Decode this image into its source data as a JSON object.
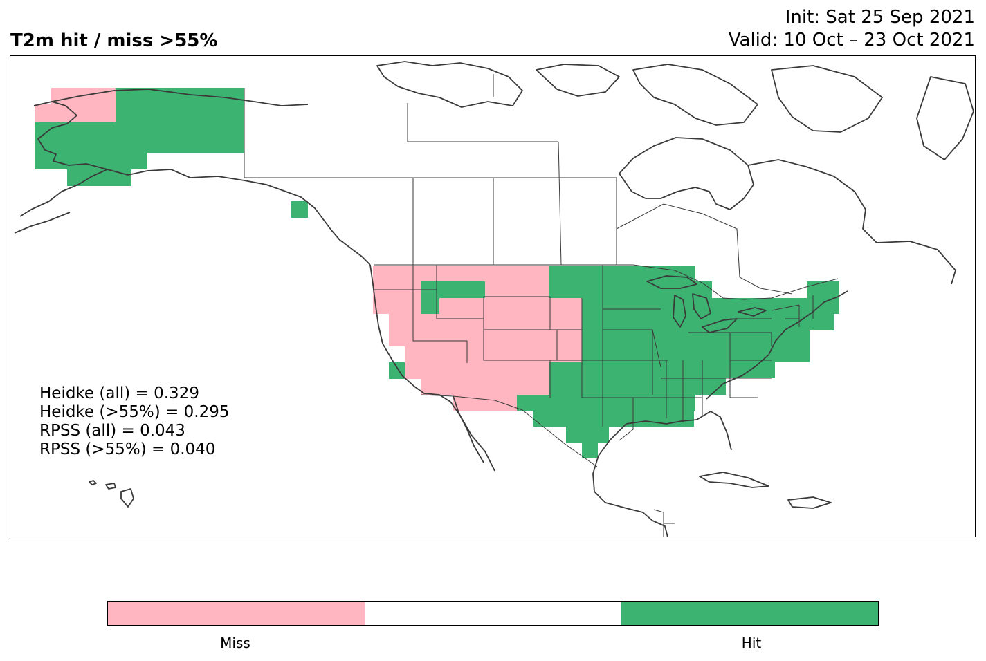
{
  "header": {
    "title": "T2m hit / miss  >55%",
    "init": "Init: Sat 25 Sep 2021",
    "valid": "Valid: 10 Oct – 23 Oct 2021"
  },
  "scores": [
    "Heidke (all) = 0.329",
    "Heidke (>55%) = 0.295",
    "RPSS (all) = 0.043",
    "RPSS (>55%) = 0.040"
  ],
  "legend": {
    "categories": [
      {
        "label": "Miss",
        "color": "#ffb6c1"
      },
      {
        "label": "",
        "color": "#ffffff"
      },
      {
        "label": "Hit",
        "color": "#3cb371"
      }
    ]
  },
  "colors": {
    "miss": "#ffb6c1",
    "hit": "#3cb371",
    "coastline": "#3a3a3a",
    "border": "#3a3a3a"
  }
}
